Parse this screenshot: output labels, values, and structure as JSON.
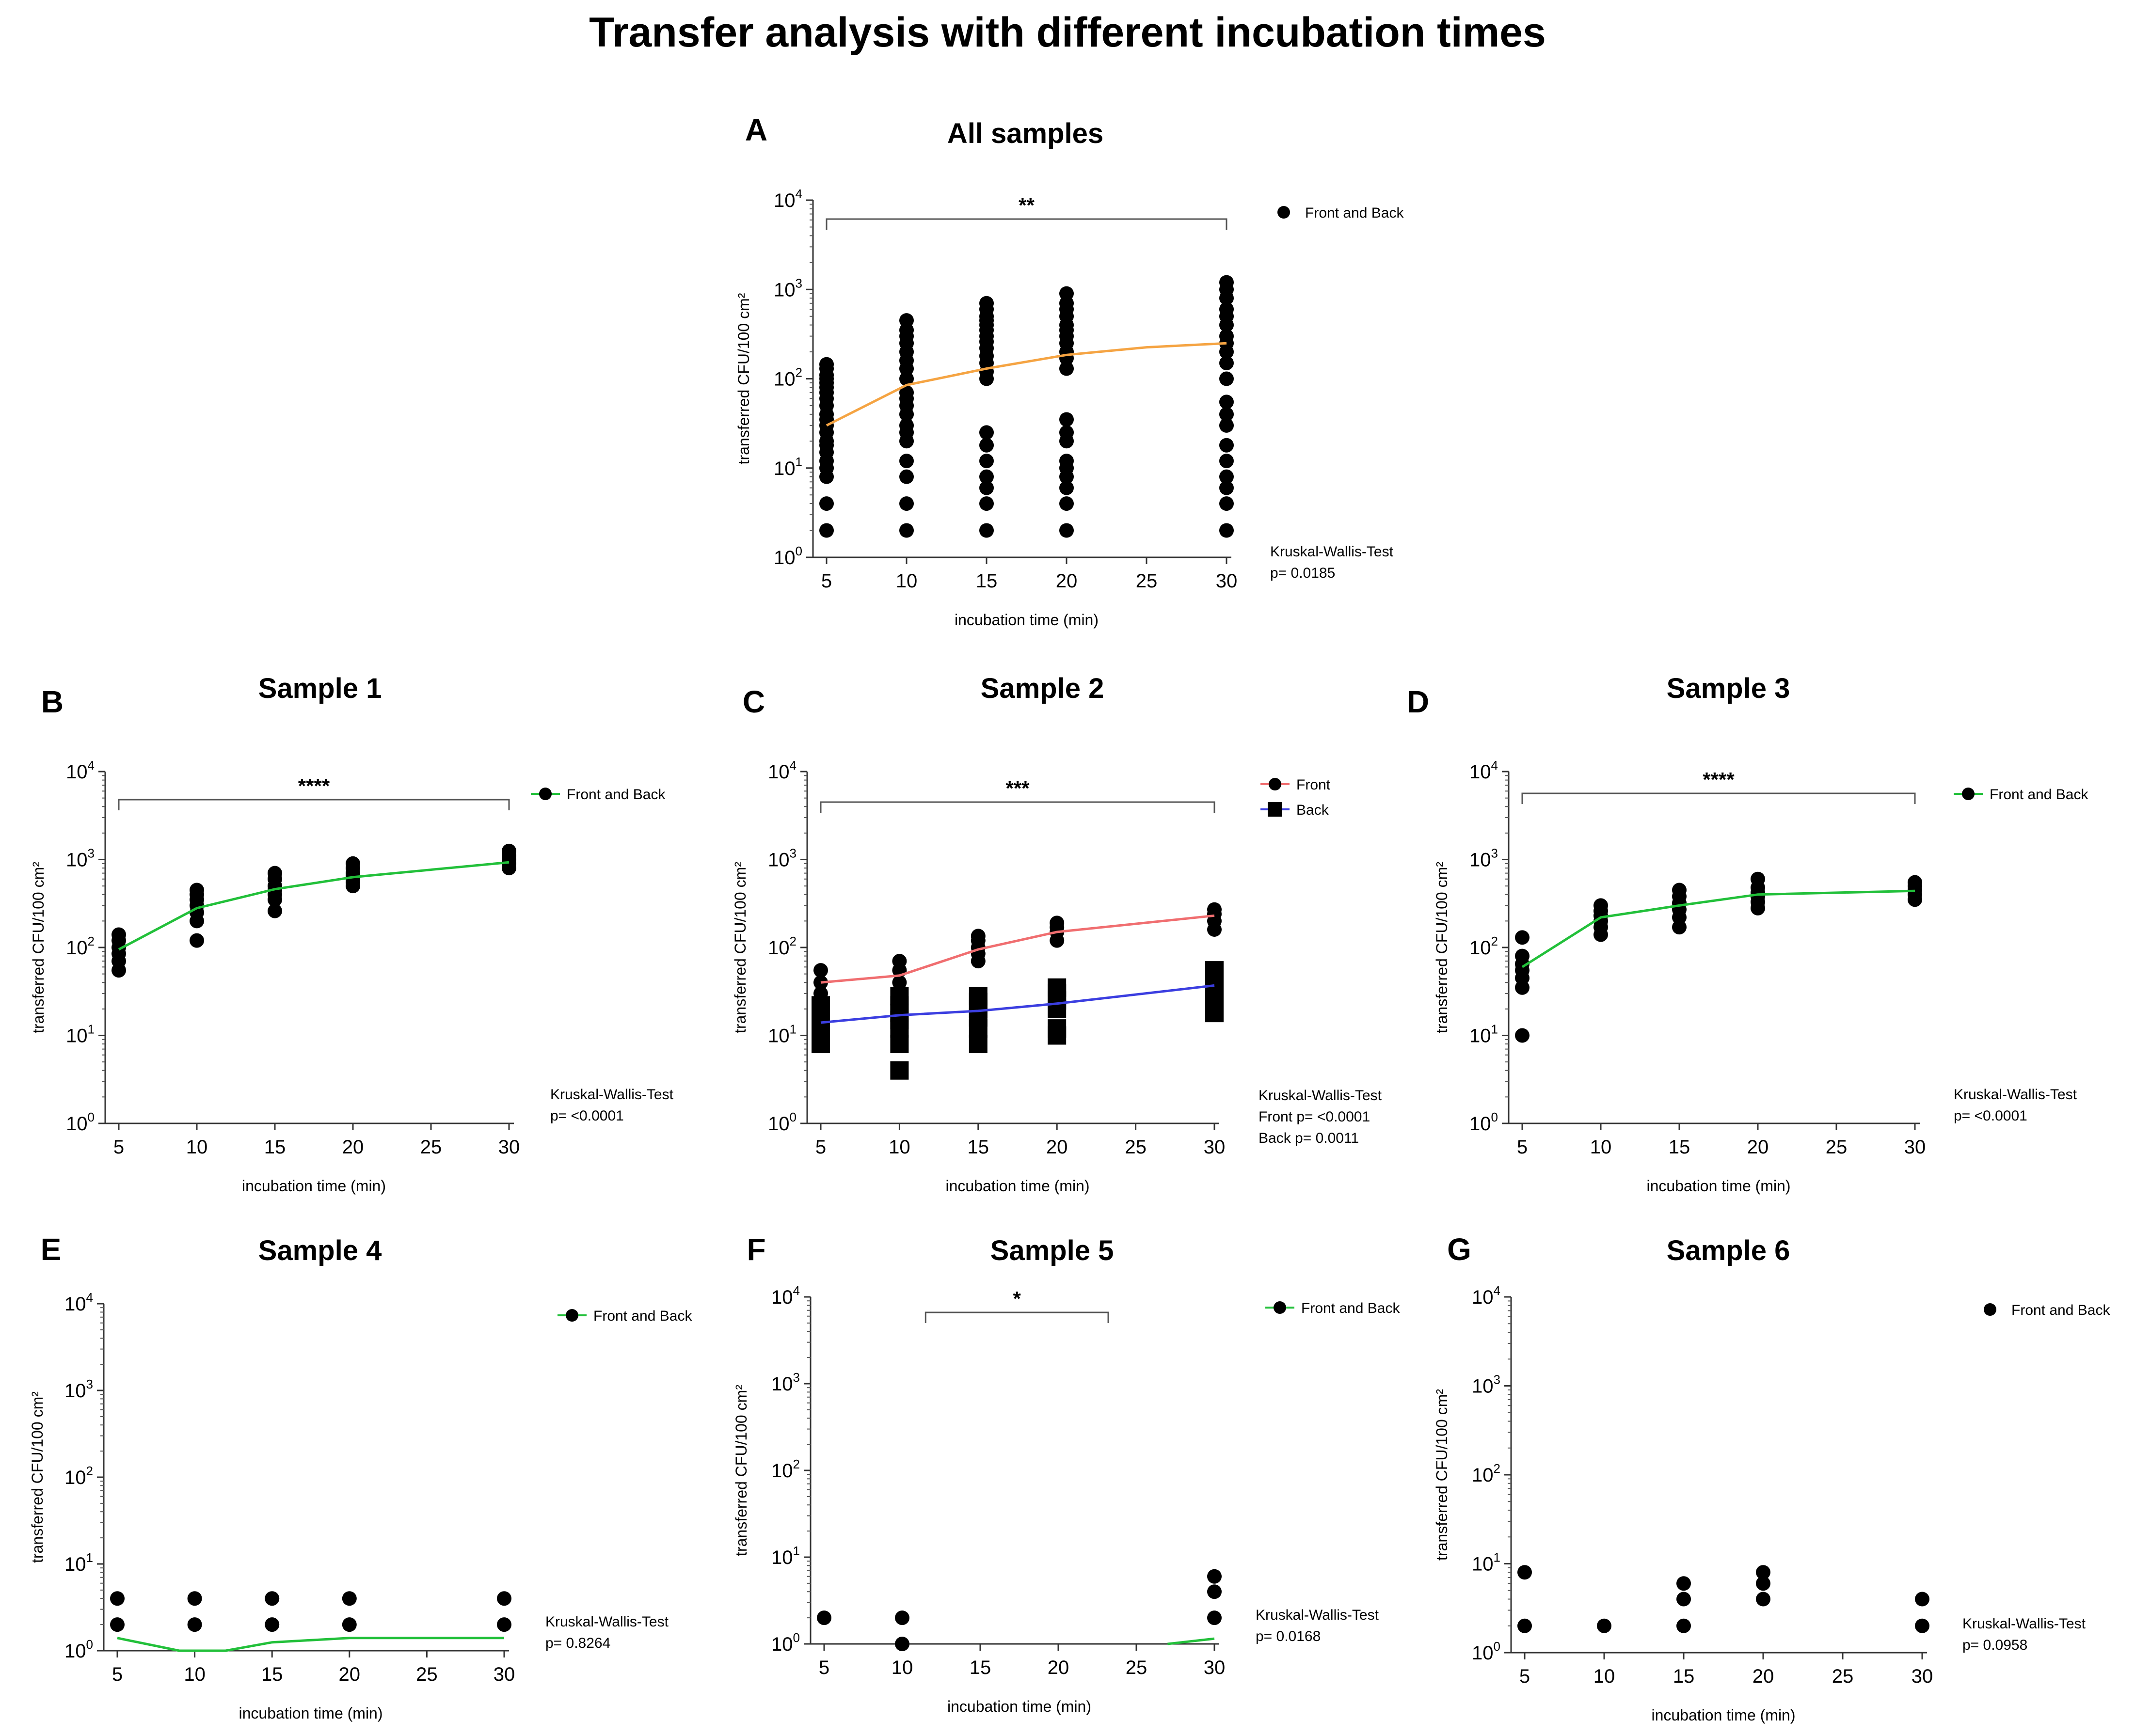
{
  "figure_title": "Transfer analysis with different incubation times",
  "chart_data": [
    {
      "id": "A",
      "letter": "A",
      "type": "scatter",
      "title": "All samples",
      "xlabel": "incubation time (min)",
      "ylabel": "transferred CFU/100 cm²",
      "xticks": [
        5,
        10,
        15,
        20,
        25,
        30
      ],
      "xlim": [
        5,
        30
      ],
      "yscale": "log",
      "yticks": [
        0,
        1,
        2,
        3,
        4
      ],
      "ylim_log10": [
        0,
        4
      ],
      "series": [
        {
          "name": "Front and Back",
          "marker": "circle",
          "line_color": "#f5a443",
          "points": [
            {
              "x": 5,
              "y": [
                2,
                4,
                8,
                10,
                12,
                15,
                18,
                20,
                25,
                30,
                35,
                40,
                50,
                60,
                70,
                80,
                90,
                100,
                110,
                130,
                145
              ]
            },
            {
              "x": 10,
              "y": [
                2,
                4,
                8,
                12,
                20,
                25,
                30,
                40,
                50,
                60,
                70,
                100,
                130,
                160,
                200,
                250,
                300,
                350,
                450
              ]
            },
            {
              "x": 15,
              "y": [
                2,
                4,
                6,
                8,
                12,
                18,
                25,
                100,
                120,
                150,
                180,
                220,
                260,
                300,
                350,
                400,
                450,
                500,
                600,
                700
              ]
            },
            {
              "x": 20,
              "y": [
                2,
                4,
                6,
                8,
                10,
                12,
                20,
                25,
                35,
                130,
                170,
                200,
                250,
                300,
                350,
                400,
                500,
                600,
                700,
                900
              ]
            },
            {
              "x": 30,
              "y": [
                2,
                4,
                6,
                8,
                12,
                18,
                30,
                40,
                55,
                100,
                150,
                200,
                250,
                300,
                400,
                500,
                600,
                800,
                1000,
                1200
              ]
            }
          ],
          "trend": [
            {
              "x": 5,
              "y": 30
            },
            {
              "x": 10,
              "y": 85
            },
            {
              "x": 15,
              "y": 130
            },
            {
              "x": 20,
              "y": 185
            },
            {
              "x": 25,
              "y": 225
            },
            {
              "x": 30,
              "y": 250
            }
          ]
        }
      ],
      "significance": {
        "label": "**",
        "from": 5,
        "to": 30
      },
      "stats": [
        "Kruskal-Wallis-Test",
        "p=  0.0185"
      ],
      "legend": [
        {
          "label": "Front and Back",
          "marker": "circle",
          "line": ""
        }
      ]
    },
    {
      "id": "B",
      "letter": "B",
      "type": "scatter",
      "title": "Sample 1",
      "xlabel": "incubation time (min)",
      "ylabel": "transferred CFU/100 cm²",
      "xticks": [
        5,
        10,
        15,
        20,
        25,
        30
      ],
      "xlim": [
        5,
        30
      ],
      "yscale": "log",
      "yticks": [
        0,
        1,
        2,
        3,
        4
      ],
      "ylim_log10": [
        0,
        4
      ],
      "series": [
        {
          "name": "Front and Back",
          "marker": "circle",
          "line_color": "#22c03a",
          "points": [
            {
              "x": 5,
              "y": [
                55,
                70,
                85,
                100,
                120,
                140
              ]
            },
            {
              "x": 10,
              "y": [
                120,
                200,
                250,
                300,
                350,
                400,
                450
              ]
            },
            {
              "x": 15,
              "y": [
                260,
                350,
                400,
                450,
                500,
                600,
                700
              ]
            },
            {
              "x": 20,
              "y": [
                500,
                550,
                600,
                650,
                700,
                800,
                900
              ]
            },
            {
              "x": 30,
              "y": [
                800,
                900,
                1000,
                1100,
                1250
              ]
            }
          ],
          "trend": [
            {
              "x": 5,
              "y": 95
            },
            {
              "x": 10,
              "y": 280
            },
            {
              "x": 15,
              "y": 460
            },
            {
              "x": 20,
              "y": 630
            },
            {
              "x": 30,
              "y": 930
            }
          ]
        }
      ],
      "significance": {
        "label": "****",
        "from": 5,
        "to": 30
      },
      "stats": [
        "Kruskal-Wallis-Test",
        "p=  <0.0001"
      ],
      "legend": [
        {
          "label": "Front and Back",
          "marker": "circle",
          "line": "#22c03a"
        }
      ]
    },
    {
      "id": "C",
      "letter": "C",
      "type": "scatter",
      "title": "Sample 2",
      "xlabel": "incubation time (min)",
      "ylabel": "transferred CFU/100 cm²",
      "xticks": [
        5,
        10,
        15,
        20,
        25,
        30
      ],
      "xlim": [
        5,
        30
      ],
      "yscale": "log",
      "yticks": [
        0,
        1,
        2,
        3,
        4
      ],
      "ylim_log10": [
        0,
        4
      ],
      "series": [
        {
          "name": "Front",
          "marker": "circle",
          "line_color": "#f06e70",
          "points": [
            {
              "x": 5,
              "y": [
                10,
                15,
                20,
                30,
                40,
                55
              ]
            },
            {
              "x": 10,
              "y": [
                10,
                20,
                30,
                40,
                55,
                70
              ]
            },
            {
              "x": 15,
              "y": [
                70,
                85,
                100,
                120,
                135
              ]
            },
            {
              "x": 20,
              "y": [
                120,
                150,
                170,
                190
              ]
            },
            {
              "x": 30,
              "y": [
                160,
                200,
                240,
                270
              ]
            }
          ],
          "trend": [
            {
              "x": 5,
              "y": 40
            },
            {
              "x": 10,
              "y": 48
            },
            {
              "x": 15,
              "y": 95
            },
            {
              "x": 20,
              "y": 150
            },
            {
              "x": 30,
              "y": 230
            }
          ]
        },
        {
          "name": "Back",
          "marker": "square",
          "line_color": "#3b3ee0",
          "points": [
            {
              "x": 5,
              "y": [
                8,
                10,
                12,
                14,
                16,
                18,
                22
              ]
            },
            {
              "x": 10,
              "y": [
                4,
                8,
                12,
                15,
                18,
                22,
                28
              ]
            },
            {
              "x": 15,
              "y": [
                8,
                12,
                16,
                20,
                24,
                28
              ]
            },
            {
              "x": 20,
              "y": [
                10,
                12,
                20,
                25,
                30,
                35
              ]
            },
            {
              "x": 30,
              "y": [
                18,
                25,
                35,
                45,
                55
              ]
            }
          ],
          "trend": [
            {
              "x": 5,
              "y": 14
            },
            {
              "x": 10,
              "y": 17
            },
            {
              "x": 15,
              "y": 19
            },
            {
              "x": 20,
              "y": 23
            },
            {
              "x": 30,
              "y": 37
            }
          ]
        }
      ],
      "significance": {
        "label": "***",
        "from": 5,
        "to": 30
      },
      "stats": [
        "Kruskal-Wallis-Test",
        "Front     p= <0.0001",
        "Back      p= 0.0011"
      ],
      "legend": [
        {
          "label": "Front",
          "marker": "circle",
          "line": "#f06e70"
        },
        {
          "label": "Back",
          "marker": "square",
          "line": "#3b3ee0"
        }
      ]
    },
    {
      "id": "D",
      "letter": "D",
      "type": "scatter",
      "title": "Sample 3",
      "xlabel": "incubation time (min)",
      "ylabel": "transferred CFU/100 cm²",
      "xticks": [
        5,
        10,
        15,
        20,
        25,
        30
      ],
      "xlim": [
        5,
        30
      ],
      "yscale": "log",
      "yticks": [
        0,
        1,
        2,
        3,
        4
      ],
      "ylim_log10": [
        0,
        4
      ],
      "series": [
        {
          "name": "Front and Back",
          "marker": "circle",
          "line_color": "#22c03a",
          "points": [
            {
              "x": 5,
              "y": [
                10,
                35,
                45,
                55,
                65,
                80,
                130
              ]
            },
            {
              "x": 10,
              "y": [
                140,
                170,
                200,
                230,
                260,
                300
              ]
            },
            {
              "x": 15,
              "y": [
                170,
                220,
                270,
                320,
                380,
                450
              ]
            },
            {
              "x": 20,
              "y": [
                280,
                330,
                380,
                420,
                480,
                600
              ]
            },
            {
              "x": 30,
              "y": [
                350,
                400,
                450,
                500,
                550
              ]
            }
          ],
          "trend": [
            {
              "x": 5,
              "y": 60
            },
            {
              "x": 10,
              "y": 220
            },
            {
              "x": 15,
              "y": 300
            },
            {
              "x": 20,
              "y": 400
            },
            {
              "x": 30,
              "y": 440
            }
          ]
        }
      ],
      "significance": {
        "label": "****",
        "from": 5,
        "to": 30
      },
      "stats": [
        "Kruskal-Wallis-Test",
        "p=  <0.0001"
      ],
      "legend": [
        {
          "label": "Front and Back",
          "marker": "circle",
          "line": "#22c03a"
        }
      ]
    },
    {
      "id": "E",
      "letter": "E",
      "type": "scatter",
      "title": "Sample 4",
      "xlabel": "incubation time (min)",
      "ylabel": "transferred CFU/100 cm²",
      "xticks": [
        5,
        10,
        15,
        20,
        25,
        30
      ],
      "xlim": [
        5,
        30
      ],
      "yscale": "log",
      "yticks": [
        0,
        1,
        2,
        3,
        4
      ],
      "ylim_log10": [
        0,
        4
      ],
      "series": [
        {
          "name": "Front and Back",
          "marker": "circle",
          "line_color": "#22c03a",
          "points": [
            {
              "x": 5,
              "y": [
                2,
                4
              ]
            },
            {
              "x": 10,
              "y": [
                2,
                4
              ]
            },
            {
              "x": 15,
              "y": [
                2,
                4
              ]
            },
            {
              "x": 20,
              "y": [
                2,
                4
              ]
            },
            {
              "x": 30,
              "y": [
                2,
                4
              ]
            }
          ],
          "trend": [
            {
              "x": 5,
              "y": 1.4
            },
            {
              "x": 9,
              "y": 1.0
            },
            {
              "x": 12,
              "y": 1.0
            },
            {
              "x": 15,
              "y": 1.25
            },
            {
              "x": 20,
              "y": 1.4
            },
            {
              "x": 30,
              "y": 1.4
            }
          ]
        }
      ],
      "significance": null,
      "stats": [
        "Kruskal-Wallis-Test",
        "p=  0.8264"
      ],
      "legend": [
        {
          "label": "Front and Back",
          "marker": "circle",
          "line": "#22c03a"
        }
      ]
    },
    {
      "id": "F",
      "letter": "F",
      "type": "scatter",
      "title": "Sample 5",
      "xlabel": "incubation time (min)",
      "ylabel": "transferred CFU/100 cm²",
      "xticks": [
        5,
        10,
        15,
        20,
        25,
        30
      ],
      "xlim": [
        5,
        30
      ],
      "yscale": "log",
      "yticks": [
        0,
        1,
        2,
        3,
        4
      ],
      "ylim_log10": [
        0,
        4
      ],
      "series": [
        {
          "name": "Front and Back",
          "marker": "circle",
          "line_color": "#22c03a",
          "points": [
            {
              "x": 5,
              "y": [
                2
              ]
            },
            {
              "x": 10,
              "y": [
                1,
                2
              ]
            },
            {
              "x": 30,
              "y": [
                2,
                4,
                6
              ]
            }
          ],
          "trend": [
            {
              "x": 27,
              "y": 1.0
            },
            {
              "x": 30,
              "y": 1.15
            }
          ]
        }
      ],
      "significance": {
        "label": "*",
        "from": 11.5,
        "to": 23.2
      },
      "stats": [
        "Kruskal-Wallis-Test",
        "p=  0.0168"
      ],
      "legend": [
        {
          "label": "Front and Back",
          "marker": "circle",
          "line": "#22c03a"
        }
      ]
    },
    {
      "id": "G",
      "letter": "G",
      "type": "scatter",
      "title": "Sample 6",
      "xlabel": "incubation time (min)",
      "ylabel": "transferred CFU/100 cm²",
      "xticks": [
        5,
        10,
        15,
        20,
        25,
        30
      ],
      "xlim": [
        5,
        30
      ],
      "yscale": "log",
      "yticks": [
        0,
        1,
        2,
        3,
        4
      ],
      "ylim_log10": [
        0,
        4
      ],
      "series": [
        {
          "name": "Front and Back",
          "marker": "circle",
          "line_color": "",
          "points": [
            {
              "x": 5,
              "y": [
                2,
                8
              ]
            },
            {
              "x": 10,
              "y": [
                2
              ]
            },
            {
              "x": 15,
              "y": [
                2,
                4,
                6
              ]
            },
            {
              "x": 20,
              "y": [
                4,
                6,
                8
              ]
            },
            {
              "x": 30,
              "y": [
                2,
                4
              ]
            }
          ],
          "trend": []
        }
      ],
      "significance": null,
      "stats": [
        "Kruskal-Wallis-Test",
        "p=  0.0958"
      ],
      "legend": [
        {
          "label": "Front and Back",
          "marker": "circle",
          "line": ""
        }
      ]
    }
  ]
}
